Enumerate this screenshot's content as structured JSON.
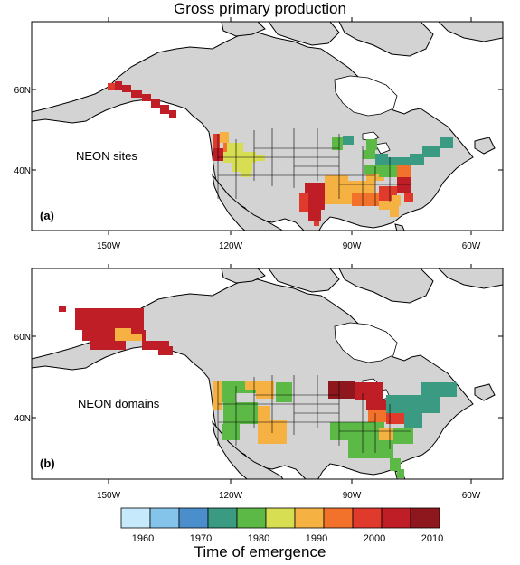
{
  "figure": {
    "title": "Gross primary production"
  },
  "panels": [
    {
      "label": "(a)",
      "annotation": "NEON sites",
      "lat_ticks": [
        "60N",
        "40N"
      ],
      "lon_ticks": [
        "150W",
        "120W",
        "90W",
        "60W"
      ]
    },
    {
      "label": "(b)",
      "annotation": "NEON domains",
      "lat_ticks": [
        "60N",
        "40N"
      ],
      "lon_ticks": [
        "150W",
        "120W",
        "90W",
        "60W"
      ]
    }
  ],
  "colorbar": {
    "title": "Time of emergence",
    "tick_labels": [
      "1960",
      "1970",
      "1980",
      "1990",
      "2000",
      "2010"
    ],
    "colors": [
      "#c6e9fb",
      "#84c3ea",
      "#4a8fcc",
      "#3a9a82",
      "#5cb946",
      "#d7de52",
      "#f6b143",
      "#f2722c",
      "#e03a2d",
      "#c01e26",
      "#8e171d"
    ]
  },
  "colors": {
    "land": "#d3d3d3",
    "ocean": "#ffffff",
    "border": "#000000"
  }
}
